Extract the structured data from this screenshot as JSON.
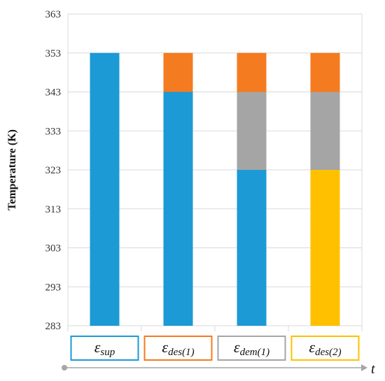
{
  "chart_data": {
    "type": "bar",
    "subtype": "floating stacked bar",
    "ylabel": "Temperature (K)",
    "ylim": [
      283,
      363
    ],
    "yticks": [
      283,
      293,
      303,
      313,
      323,
      333,
      343,
      353,
      363
    ],
    "grid": true,
    "x_arrow_label": "t",
    "categories": [
      {
        "symbol": "ε",
        "subscript": "sup",
        "box_color": "#1b9ad6"
      },
      {
        "symbol": "ε",
        "subscript": "des(1)",
        "box_color": "#f47b20"
      },
      {
        "symbol": "ε",
        "subscript": "dem(1)",
        "box_color": "#a5a5a5"
      },
      {
        "symbol": "ε",
        "subscript": "des(2)",
        "box_color": "#ffc000"
      }
    ],
    "series": [
      {
        "color": "#1b9ad6",
        "ranges": [
          [
            283,
            353
          ],
          [
            283,
            343
          ],
          [
            283,
            323
          ],
          null
        ]
      },
      {
        "color": "#ffc000",
        "ranges": [
          null,
          null,
          null,
          [
            283,
            323
          ]
        ]
      },
      {
        "color": "#a5a5a5",
        "ranges": [
          null,
          null,
          [
            323,
            343
          ],
          [
            323,
            343
          ]
        ]
      },
      {
        "color": "#f47b20",
        "ranges": [
          null,
          [
            343,
            353
          ],
          [
            343,
            353
          ],
          [
            343,
            353
          ]
        ]
      }
    ]
  }
}
